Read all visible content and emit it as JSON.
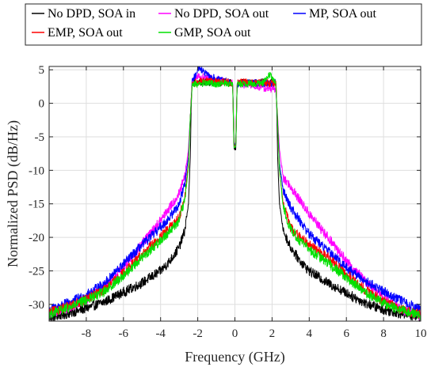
{
  "chart_data": {
    "type": "line",
    "title": "",
    "xlabel": "Frequency (GHz)",
    "ylabel": "Normalized PSD (dB/Hz)",
    "xlim": [
      -10,
      10
    ],
    "ylim": [
      -32.5,
      5.5
    ],
    "xticks": [
      -8,
      -6,
      -4,
      -2,
      0,
      2,
      4,
      6,
      8,
      10
    ],
    "yticks": [
      5,
      0,
      -5,
      -10,
      -15,
      -20,
      -25,
      -30
    ],
    "grid": true,
    "legend_position": "top, outside plot",
    "series": [
      {
        "name": "No DPD, SOA in",
        "color": "#000000",
        "points": [
          [
            -10,
            -32.0
          ],
          [
            -9,
            -31.4
          ],
          [
            -8,
            -30.6
          ],
          [
            -7,
            -29.6
          ],
          [
            -6,
            -28.2
          ],
          [
            -5,
            -26.8
          ],
          [
            -4,
            -25.0
          ],
          [
            -3.5,
            -23.5
          ],
          [
            -3,
            -21.5
          ],
          [
            -2.7,
            -19.0
          ],
          [
            -2.5,
            -15.0
          ],
          [
            -2.4,
            -8.0
          ],
          [
            -2.35,
            0.0
          ],
          [
            -2.3,
            3.0
          ],
          [
            -1.5,
            3.2
          ],
          [
            -1.0,
            3.0
          ],
          [
            -0.5,
            3.2
          ],
          [
            -0.12,
            3.0
          ],
          [
            -0.05,
            -6.8
          ],
          [
            0.05,
            -6.8
          ],
          [
            0.12,
            3.0
          ],
          [
            0.5,
            3.1
          ],
          [
            1.0,
            3.0
          ],
          [
            1.5,
            3.2
          ],
          [
            2.2,
            3.0
          ],
          [
            2.25,
            0.0
          ],
          [
            2.3,
            -8.0
          ],
          [
            2.4,
            -15.0
          ],
          [
            2.6,
            -19.0
          ],
          [
            3.0,
            -21.5
          ],
          [
            3.5,
            -23.5
          ],
          [
            4.0,
            -25.0
          ],
          [
            5.0,
            -26.8
          ],
          [
            6.0,
            -28.3
          ],
          [
            7.0,
            -29.8
          ],
          [
            8.0,
            -30.8
          ],
          [
            9.0,
            -31.4
          ],
          [
            10,
            -31.9
          ]
        ]
      },
      {
        "name": "No DPD, SOA out",
        "color": "#ff00ff",
        "points": [
          [
            -10,
            -31.3
          ],
          [
            -9,
            -30.6
          ],
          [
            -8,
            -29.3
          ],
          [
            -7,
            -27.2
          ],
          [
            -6,
            -24.5
          ],
          [
            -5,
            -21.0
          ],
          [
            -4,
            -17.5
          ],
          [
            -3.5,
            -15.5
          ],
          [
            -3,
            -13.5
          ],
          [
            -2.7,
            -11.0
          ],
          [
            -2.5,
            -7.0
          ],
          [
            -2.4,
            -2.0
          ],
          [
            -2.3,
            3.5
          ],
          [
            -2.0,
            4.0
          ],
          [
            -1.5,
            3.8
          ],
          [
            -1.0,
            3.5
          ],
          [
            -0.5,
            3.3
          ],
          [
            -0.12,
            3.0
          ],
          [
            -0.05,
            -6.0
          ],
          [
            0.05,
            -6.0
          ],
          [
            0.12,
            3.0
          ],
          [
            0.5,
            2.8
          ],
          [
            1.0,
            2.6
          ],
          [
            1.5,
            2.3
          ],
          [
            2.2,
            2.0
          ],
          [
            2.3,
            -2.0
          ],
          [
            2.4,
            -7.0
          ],
          [
            2.6,
            -11.0
          ],
          [
            3.0,
            -12.5
          ],
          [
            3.5,
            -14.5
          ],
          [
            4.0,
            -16.5
          ],
          [
            5.0,
            -20.0
          ],
          [
            6.0,
            -23.5
          ],
          [
            7.0,
            -26.5
          ],
          [
            8.0,
            -29.0
          ],
          [
            9.0,
            -30.8
          ],
          [
            10,
            -31.8
          ]
        ]
      },
      {
        "name": "MP, SOA out",
        "color": "#0000ff",
        "points": [
          [
            -10,
            -30.8
          ],
          [
            -9,
            -29.8
          ],
          [
            -8,
            -28.6
          ],
          [
            -7,
            -26.8
          ],
          [
            -6,
            -24.0
          ],
          [
            -5,
            -21.2
          ],
          [
            -4,
            -18.5
          ],
          [
            -3.5,
            -17.0
          ],
          [
            -3,
            -15.0
          ],
          [
            -2.7,
            -12.0
          ],
          [
            -2.5,
            -8.0
          ],
          [
            -2.4,
            -2.0
          ],
          [
            -2.3,
            3.5
          ],
          [
            -2.1,
            4.2
          ],
          [
            -2.0,
            5.5
          ],
          [
            -1.5,
            4.2
          ],
          [
            -1.0,
            3.6
          ],
          [
            -0.5,
            3.3
          ],
          [
            -0.12,
            3.0
          ],
          [
            -0.05,
            -6.2
          ],
          [
            0.05,
            -6.2
          ],
          [
            0.12,
            3.0
          ],
          [
            0.5,
            3.0
          ],
          [
            1.0,
            3.1
          ],
          [
            1.5,
            3.0
          ],
          [
            2.2,
            3.0
          ],
          [
            2.3,
            -3.0
          ],
          [
            2.4,
            -9.0
          ],
          [
            2.6,
            -13.0
          ],
          [
            3.0,
            -15.5
          ],
          [
            3.5,
            -17.5
          ],
          [
            4.0,
            -19.5
          ],
          [
            5.0,
            -22.0
          ],
          [
            6.0,
            -24.5
          ],
          [
            7.0,
            -26.5
          ],
          [
            8.0,
            -28.0
          ],
          [
            9.0,
            -29.5
          ],
          [
            10,
            -30.8
          ]
        ]
      },
      {
        "name": "EMP, SOA out",
        "color": "#ff0000",
        "points": [
          [
            -10,
            -31.2
          ],
          [
            -9,
            -30.4
          ],
          [
            -8,
            -29.2
          ],
          [
            -7,
            -27.8
          ],
          [
            -6,
            -25.3
          ],
          [
            -5,
            -22.5
          ],
          [
            -4,
            -20.0
          ],
          [
            -3.5,
            -18.5
          ],
          [
            -3,
            -17.0
          ],
          [
            -2.7,
            -14.0
          ],
          [
            -2.5,
            -9.0
          ],
          [
            -2.4,
            -2.0
          ],
          [
            -2.3,
            3.0
          ],
          [
            -1.5,
            3.4
          ],
          [
            -1.0,
            3.2
          ],
          [
            -0.5,
            3.2
          ],
          [
            -0.12,
            3.0
          ],
          [
            -0.05,
            -6.3
          ],
          [
            0.05,
            -6.3
          ],
          [
            0.12,
            3.0
          ],
          [
            0.5,
            3.2
          ],
          [
            1.0,
            3.0
          ],
          [
            1.5,
            3.1
          ],
          [
            2.2,
            3.0
          ],
          [
            2.3,
            -3.0
          ],
          [
            2.4,
            -10.0
          ],
          [
            2.6,
            -15.0
          ],
          [
            3.0,
            -18.5
          ],
          [
            3.5,
            -20.0
          ],
          [
            4.0,
            -21.0
          ],
          [
            5.0,
            -23.0
          ],
          [
            6.0,
            -25.5
          ],
          [
            7.0,
            -27.8
          ],
          [
            8.0,
            -29.5
          ],
          [
            9.0,
            -30.8
          ],
          [
            10,
            -31.6
          ]
        ]
      },
      {
        "name": "GMP, SOA out",
        "color": "#00e000",
        "points": [
          [
            -10,
            -31.4
          ],
          [
            -9,
            -30.6
          ],
          [
            -8,
            -29.4
          ],
          [
            -7,
            -28.0
          ],
          [
            -6,
            -25.7
          ],
          [
            -5,
            -23.0
          ],
          [
            -4,
            -20.5
          ],
          [
            -3.5,
            -19.0
          ],
          [
            -3,
            -17.5
          ],
          [
            -2.7,
            -14.5
          ],
          [
            -2.5,
            -9.5
          ],
          [
            -2.4,
            -2.0
          ],
          [
            -2.3,
            2.8
          ],
          [
            -1.5,
            3.0
          ],
          [
            -1.0,
            2.9
          ],
          [
            -0.5,
            3.0
          ],
          [
            -0.12,
            2.9
          ],
          [
            -0.05,
            -6.5
          ],
          [
            0.05,
            -6.5
          ],
          [
            0.12,
            2.9
          ],
          [
            0.5,
            3.0
          ],
          [
            1.0,
            2.9
          ],
          [
            1.5,
            3.0
          ],
          [
            1.9,
            4.3
          ],
          [
            2.2,
            2.9
          ],
          [
            2.3,
            -3.0
          ],
          [
            2.4,
            -10.0
          ],
          [
            2.6,
            -15.5
          ],
          [
            3.0,
            -18.8
          ],
          [
            3.5,
            -20.5
          ],
          [
            4.0,
            -21.8
          ],
          [
            5.0,
            -23.8
          ],
          [
            6.0,
            -26.0
          ],
          [
            7.0,
            -28.2
          ],
          [
            8.0,
            -29.8
          ],
          [
            9.0,
            -30.9
          ],
          [
            10,
            -31.7
          ]
        ]
      }
    ]
  }
}
